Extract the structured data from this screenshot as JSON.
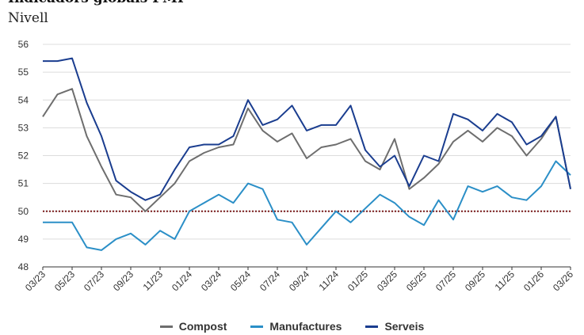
{
  "header": {
    "title": "Indicadors globals PMI",
    "subtitle": "Nivell"
  },
  "chart_data": {
    "type": "line",
    "x": [
      "03/23",
      "04/23",
      "05/23",
      "06/23",
      "07/23",
      "08/23",
      "09/23",
      "10/23",
      "11/23",
      "12/23",
      "01/24",
      "02/24",
      "03/24",
      "04/24",
      "05/24",
      "06/24",
      "07/24",
      "08/24",
      "09/24",
      "10/24",
      "11/24",
      "12/24",
      "01/25",
      "02/25",
      "03/25",
      "04/25",
      "05/25",
      "06/25",
      "07/25",
      "08/25",
      "09/25",
      "10/25",
      "11/25",
      "12/25",
      "01/26",
      "02/26",
      "03/26"
    ],
    "x_tick_labels": [
      "03/23",
      "05/23",
      "07/23",
      "09/23",
      "11/23",
      "01/24",
      "03/24",
      "05/24",
      "07/24",
      "09/24",
      "11/24",
      "01/25",
      "03/25",
      "05/25",
      "07/25",
      "09/25",
      "11/25",
      "01/26",
      "03/26"
    ],
    "ylim": [
      48,
      56
    ],
    "y_ticks": [
      "48",
      "49",
      "50",
      "51",
      "52",
      "53",
      "54",
      "55",
      "56"
    ],
    "reference_line": 50,
    "reference_color": "#7b1c1c",
    "series": [
      {
        "name": "Compost",
        "color": "#6e6e6e",
        "values": [
          53.4,
          54.2,
          54.4,
          52.7,
          51.6,
          50.6,
          50.5,
          50.0,
          50.5,
          51.0,
          51.8,
          52.1,
          52.3,
          52.4,
          53.7,
          52.9,
          52.5,
          52.8,
          51.9,
          52.3,
          52.4,
          52.6,
          51.8,
          51.5,
          52.6,
          50.8,
          51.2,
          51.7,
          52.5,
          52.9,
          52.5,
          53.0,
          52.7,
          52.0,
          52.6,
          53.4,
          50.8
        ]
      },
      {
        "name": "Manufactures",
        "color": "#2b8fc7",
        "values": [
          49.6,
          49.6,
          49.6,
          48.7,
          48.6,
          49.0,
          49.2,
          48.8,
          49.3,
          49.0,
          50.0,
          50.3,
          50.6,
          50.3,
          51.0,
          50.8,
          49.7,
          49.6,
          48.8,
          49.4,
          50.0,
          49.6,
          50.1,
          50.6,
          50.3,
          49.8,
          49.5,
          50.4,
          49.7,
          50.9,
          50.7,
          50.9,
          50.5,
          50.4,
          50.9,
          51.8,
          51.3
        ]
      },
      {
        "name": "Serveis",
        "color": "#1a3d8f",
        "values": [
          55.4,
          55.4,
          55.5,
          53.9,
          52.7,
          51.1,
          50.7,
          50.4,
          50.6,
          51.5,
          52.3,
          52.4,
          52.4,
          52.7,
          54.0,
          53.1,
          53.3,
          53.8,
          52.9,
          53.1,
          53.1,
          53.8,
          52.2,
          51.6,
          52.0,
          50.9,
          52.0,
          51.8,
          53.5,
          53.3,
          52.9,
          53.5,
          53.2,
          52.4,
          52.7,
          53.4,
          50.8
        ]
      }
    ],
    "grid": true,
    "legend_position": "bottom-center"
  }
}
